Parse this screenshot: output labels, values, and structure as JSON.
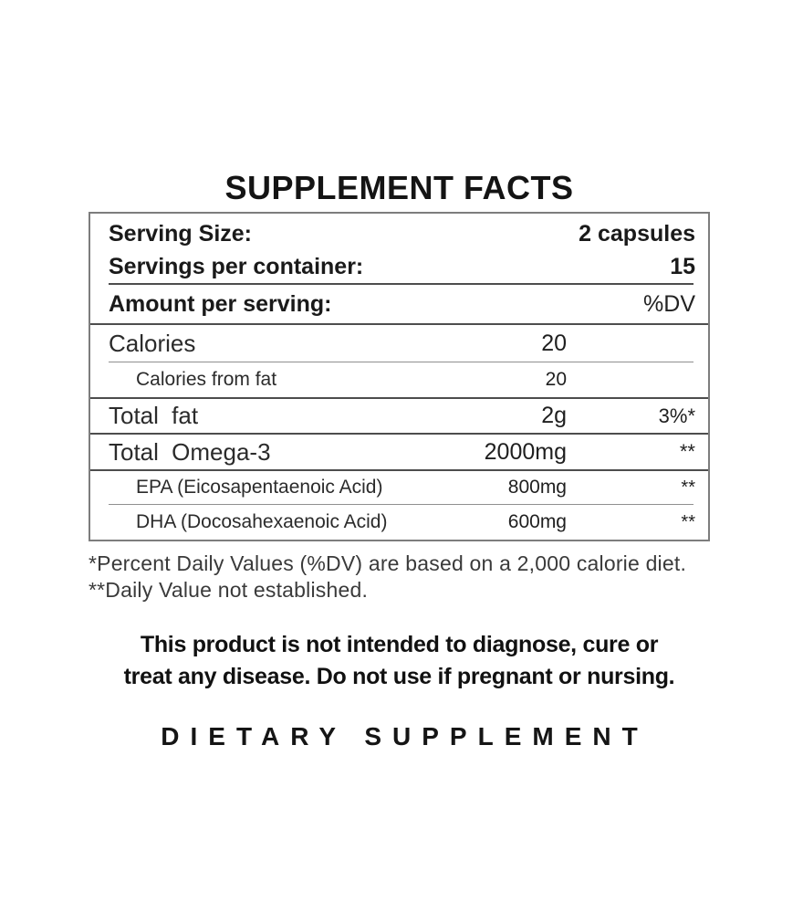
{
  "label": {
    "title": "SUPPLEMENT FACTS",
    "serving_rows": [
      {
        "label": "Serving Size:",
        "value": "2 capsules"
      },
      {
        "label": "Servings per container:",
        "value": "15"
      }
    ],
    "header": {
      "label": "Amount per serving:",
      "dv": "%DV"
    },
    "rows": [
      {
        "label": "Calories",
        "value": "20",
        "dv": ""
      },
      {
        "label": "Calories from fat",
        "value": "20",
        "dv": ""
      },
      {
        "label": "Total fat",
        "value": "2g",
        "dv": "3%*"
      },
      {
        "label": "Total Omega-3",
        "value": "2000mg",
        "dv": "**"
      },
      {
        "label": "EPA (Eicosapentaenoic Acid)",
        "value": "800mg",
        "dv": "**"
      },
      {
        "label": "DHA (Docosahexaenoic Acid)",
        "value": "600mg",
        "dv": "**"
      }
    ],
    "footnotes": [
      "*Percent Daily Values (%DV) are based on a 2,000 calorie diet.",
      "**Daily Value not established."
    ],
    "disclaimer_lines": [
      "This product is not intended to diagnose, cure or",
      "treat any disease. Do not use if pregnant or nursing."
    ],
    "product_type": "DIETARY SUPPLEMENT"
  },
  "colors": {
    "ink": "#1e1e1e",
    "rule_dark": "#4d4d4d",
    "rule_light": "#8f8f8f",
    "box_border": "#7d7d7d"
  }
}
